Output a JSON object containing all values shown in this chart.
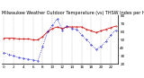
{
  "title": "Milwaukee Weather Outdoor Temperature (vs) THSW Index per Hour (Last 24 Hours)",
  "hours": [
    0,
    1,
    2,
    3,
    4,
    5,
    6,
    7,
    8,
    9,
    10,
    11,
    12,
    13,
    14,
    15,
    16,
    17,
    18,
    19,
    20,
    21,
    22,
    23
  ],
  "temp": [
    52,
    52,
    52,
    51,
    51,
    51,
    50,
    50,
    54,
    60,
    64,
    66,
    64,
    66,
    66,
    66,
    66,
    63,
    61,
    59,
    61,
    63,
    65,
    67
  ],
  "thsw": [
    34,
    32,
    30,
    28,
    27,
    26,
    25,
    24,
    42,
    60,
    68,
    76,
    62,
    67,
    64,
    63,
    56,
    50,
    44,
    38,
    42,
    48,
    56,
    62
  ],
  "temp_color": "#cc0000",
  "thsw_color": "#0000cc",
  "ylim": [
    20,
    80
  ],
  "yticks": [
    20,
    30,
    40,
    50,
    60,
    70,
    80
  ],
  "background_color": "#ffffff",
  "grid_color": "#888888",
  "title_fontsize": 3.5,
  "tick_fontsize": 3.0,
  "linewidth_temp": 0.55,
  "linewidth_thsw": 0.55,
  "markersize": 0.7
}
